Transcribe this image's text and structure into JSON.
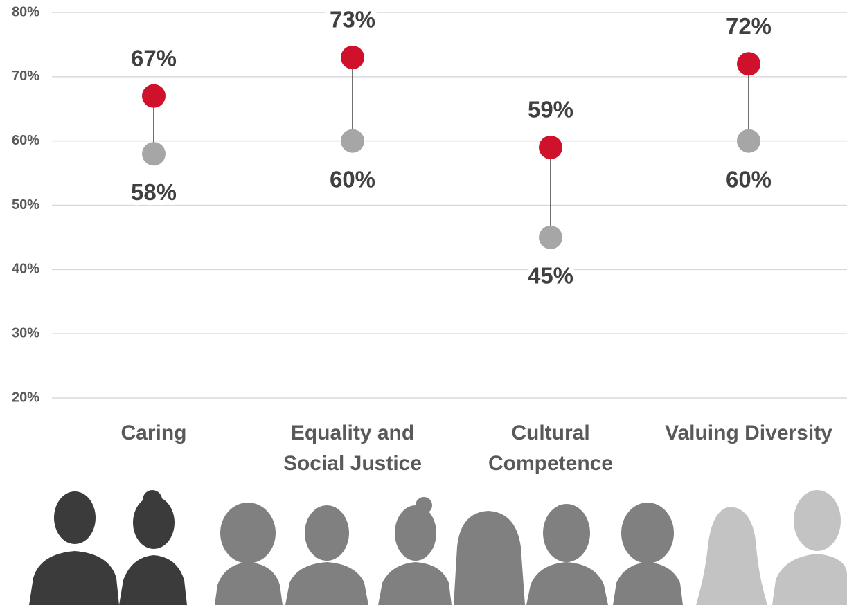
{
  "chart_data": {
    "type": "dumbbell",
    "categories": [
      "Caring",
      "Equality and\nSocial Justice",
      "Cultural\nCompetence",
      "Valuing Diversity"
    ],
    "series": [
      {
        "color": "#a6a6a6",
        "values": [
          58,
          60,
          45,
          60
        ],
        "value_labels": [
          "58%",
          "60%",
          "45%",
          "60%"
        ]
      },
      {
        "color": "#d0112b",
        "values": [
          67,
          73,
          59,
          72
        ],
        "value_labels": [
          "67%",
          "73%",
          "59%",
          "72%"
        ]
      }
    ],
    "ylim": [
      20,
      80
    ],
    "yticks": [
      {
        "value": 20,
        "label": "20%"
      },
      {
        "value": 30,
        "label": "30%"
      },
      {
        "value": 40,
        "label": "40%"
      },
      {
        "value": 50,
        "label": "50%"
      },
      {
        "value": 60,
        "label": "60%"
      },
      {
        "value": 70,
        "label": "70%"
      },
      {
        "value": 80,
        "label": "80%"
      }
    ],
    "grid": true
  }
}
